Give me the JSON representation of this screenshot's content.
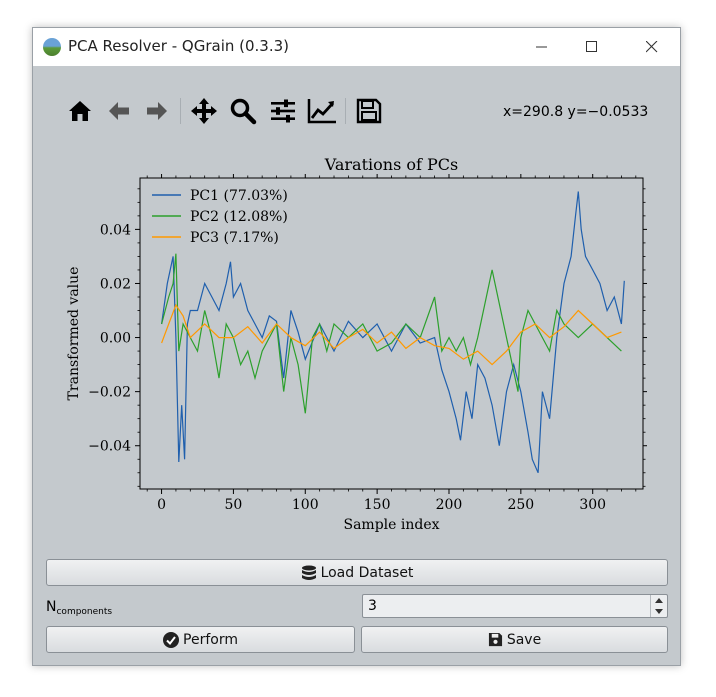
{
  "window": {
    "title": "PCA Resolver - QGrain (0.3.3)"
  },
  "toolbar": {
    "items": [
      "home-icon",
      "back-arrow-icon",
      "forward-arrow-icon",
      "pan-icon",
      "zoom-icon",
      "configure-subplots-icon",
      "edit-axes-icon",
      "save-figure-icon"
    ],
    "coords_text": "x=290.8 y=−0.0533"
  },
  "chart_data": {
    "type": "line",
    "title": "Varations of PCs",
    "xlabel": "Sample index",
    "ylabel": "Transformed value",
    "xlim": [
      -15,
      335
    ],
    "ylim": [
      -0.056,
      0.059
    ],
    "xticks": [
      0,
      50,
      100,
      150,
      200,
      250,
      300
    ],
    "xtick_labels": [
      "0",
      "50",
      "100",
      "150",
      "200",
      "250",
      "300"
    ],
    "yticks": [
      -0.04,
      -0.02,
      0.0,
      0.02,
      0.04
    ],
    "ytick_labels": [
      "−0.04",
      "−0.02",
      "0.00",
      "0.02",
      "0.04"
    ],
    "legend_position": "top-left",
    "grid": false,
    "series": [
      {
        "name": "PC1 (77.03%)",
        "color": "#1f5fad",
        "x": [
          0,
          4,
          8,
          10,
          12,
          14,
          16,
          18,
          20,
          25,
          30,
          35,
          40,
          45,
          48,
          50,
          55,
          60,
          65,
          70,
          75,
          80,
          85,
          90,
          95,
          100,
          110,
          120,
          130,
          140,
          150,
          160,
          170,
          180,
          190,
          195,
          200,
          205,
          208,
          212,
          216,
          220,
          225,
          230,
          235,
          240,
          245,
          250,
          255,
          258,
          262,
          265,
          270,
          275,
          280,
          285,
          288,
          290,
          292,
          295,
          300,
          305,
          310,
          315,
          320,
          322
        ],
        "y": [
          0.005,
          0.02,
          0.03,
          0.0,
          -0.046,
          -0.025,
          -0.045,
          0.005,
          0.01,
          0.01,
          0.02,
          0.015,
          0.01,
          0.02,
          0.028,
          0.015,
          0.02,
          0.01,
          0.005,
          0.0,
          0.008,
          0.006,
          -0.015,
          0.01,
          0.002,
          -0.008,
          0.005,
          -0.005,
          0.006,
          0.0,
          0.005,
          -0.005,
          0.005,
          -0.002,
          0.0,
          -0.012,
          -0.02,
          -0.03,
          -0.038,
          -0.02,
          -0.03,
          -0.01,
          -0.015,
          -0.025,
          -0.04,
          -0.02,
          -0.01,
          -0.02,
          -0.035,
          -0.045,
          -0.05,
          -0.02,
          -0.03,
          0.0,
          0.02,
          0.03,
          0.045,
          0.054,
          0.04,
          0.03,
          0.025,
          0.02,
          0.01,
          0.015,
          0.005,
          0.021
        ]
      },
      {
        "name": "PC2 (12.08%)",
        "color": "#2ca02c",
        "x": [
          0,
          5,
          8,
          10,
          12,
          15,
          20,
          25,
          30,
          35,
          40,
          45,
          50,
          55,
          60,
          65,
          70,
          75,
          80,
          85,
          90,
          95,
          100,
          105,
          110,
          115,
          120,
          130,
          140,
          150,
          160,
          170,
          180,
          190,
          195,
          200,
          205,
          210,
          215,
          220,
          230,
          240,
          248,
          250,
          255,
          260,
          265,
          270,
          275,
          280,
          290,
          300,
          310,
          320
        ],
        "y": [
          0.005,
          0.015,
          0.02,
          0.031,
          -0.005,
          0.005,
          0.0,
          -0.005,
          0.01,
          0.0,
          -0.015,
          0.005,
          0.0,
          -0.01,
          -0.005,
          -0.015,
          -0.005,
          0.0,
          0.005,
          -0.02,
          0.0,
          -0.01,
          -0.028,
          0.0,
          0.005,
          -0.005,
          0.005,
          0.0,
          0.005,
          -0.005,
          -0.002,
          0.005,
          0.0,
          0.015,
          -0.005,
          0.0,
          -0.005,
          0.0,
          -0.01,
          0.0,
          0.025,
          0.0,
          -0.02,
          0.0,
          0.01,
          0.005,
          0.0,
          -0.005,
          0.01,
          0.005,
          0.0,
          0.005,
          0.0,
          -0.005
        ]
      },
      {
        "name": "PC3 (7.17%)",
        "color": "#ff9900",
        "x": [
          0,
          5,
          10,
          15,
          20,
          30,
          40,
          50,
          60,
          70,
          80,
          90,
          100,
          110,
          120,
          130,
          140,
          150,
          160,
          170,
          180,
          190,
          200,
          210,
          220,
          230,
          240,
          250,
          260,
          270,
          280,
          290,
          300,
          310,
          320
        ],
        "y": [
          -0.002,
          0.005,
          0.012,
          0.008,
          0.0,
          0.005,
          0.0,
          0.0,
          0.004,
          -0.002,
          0.005,
          0.0,
          -0.003,
          0.002,
          -0.004,
          0.0,
          0.003,
          -0.002,
          0.002,
          -0.004,
          0.0,
          -0.003,
          -0.004,
          -0.008,
          -0.005,
          -0.01,
          -0.005,
          0.002,
          0.005,
          0.0,
          0.004,
          0.01,
          0.005,
          0.0,
          0.002
        ]
      }
    ]
  },
  "buttons": {
    "load_label": "Load Dataset",
    "perform_label": "Perform",
    "save_label": "Save"
  },
  "ncomponents": {
    "label_main": "N",
    "label_sub": "components",
    "value": "3"
  }
}
